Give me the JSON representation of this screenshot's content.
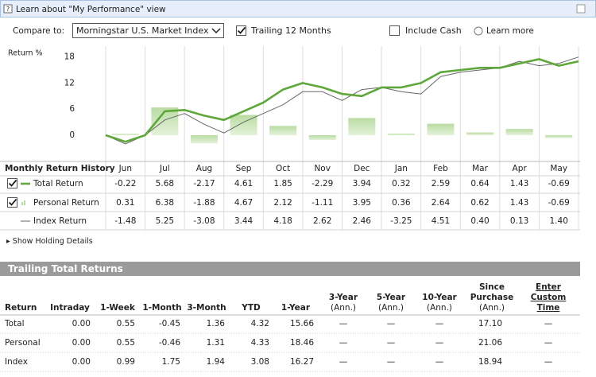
{
  "header": {
    "learn_about": "Learn about \"My Performance\" view"
  },
  "controls": {
    "compare_label": "Compare to:",
    "compare_value": "Morningstar U.S. Market Index",
    "trailing": "Trailing 12 Months",
    "trailing_checked": true,
    "include_cash": "Include Cash",
    "include_cash_checked": false,
    "learn_more": "Learn more"
  },
  "chart_data": {
    "type": "line",
    "y_label": "Return %",
    "title": "Monthly Return History",
    "categories": [
      "Jun",
      "Jul",
      "Aug",
      "Sep",
      "Oct",
      "Nov",
      "Dec",
      "Jan",
      "Feb",
      "Mar",
      "Apr",
      "May"
    ],
    "x": [
      0,
      0.5,
      1,
      1.5,
      2,
      2.5,
      3,
      3.5,
      4,
      4.5,
      5,
      5.5,
      6,
      6.5,
      7,
      7.5,
      8,
      8.5,
      9,
      9.5,
      10,
      10.5,
      11,
      11.5,
      12
    ],
    "xlim": [
      0,
      12
    ],
    "xticks": [
      0,
      1,
      2,
      3,
      4,
      5,
      6,
      7,
      8,
      9,
      10,
      11,
      12
    ],
    "ylim": [
      -5.5,
      20.5
    ],
    "yticks": [
      0,
      6,
      12,
      18
    ],
    "series": [
      {
        "name": "Total Return",
        "color": "#5ea83a",
        "values": [
          0,
          -1.5,
          0,
          5.5,
          5.8,
          4.5,
          3.5,
          5.5,
          7.5,
          10.5,
          12,
          11,
          9.5,
          9,
          11,
          11,
          12,
          14.5,
          15,
          15.5,
          15.5,
          16.5,
          17.5,
          16,
          17
        ],
        "monthly": [
          "-0.22",
          "5.68",
          "-2.17",
          "4.61",
          "1.85",
          "-2.29",
          "3.94",
          "0.32",
          "2.59",
          "0.64",
          "1.43",
          "-0.69"
        ]
      },
      {
        "name": "Personal Return",
        "color": "#b9dca2",
        "values": [
          0.31,
          6.38,
          -1.88,
          4.67,
          2.12,
          -1.11,
          3.95,
          0.36,
          2.64,
          0.62,
          1.43,
          -0.69
        ]
      },
      {
        "name": "Index Return",
        "color": "#666666",
        "values": [
          0,
          -2,
          0,
          3.5,
          5,
          2.5,
          0.5,
          3,
          5,
          7,
          10,
          10,
          8,
          10.5,
          11,
          10,
          9.5,
          13.5,
          14.5,
          15,
          15.5,
          17,
          16,
          16.5,
          18
        ],
        "monthly": [
          "-1.48",
          "5.25",
          "-3.08",
          "3.44",
          "4.18",
          "2.62",
          "2.46",
          "-3.25",
          "4.51",
          "0.40",
          "0.13",
          "1.40"
        ]
      }
    ]
  },
  "holding_details": "Show Holding Details",
  "trailing": {
    "title": "Trailing Total Returns",
    "columns": [
      [
        "Return"
      ],
      [
        "Intraday"
      ],
      [
        "1-Week"
      ],
      [
        "1-Month"
      ],
      [
        "3-Month"
      ],
      [
        "YTD"
      ],
      [
        "1-Year"
      ],
      [
        "3-Year",
        "(Ann.)"
      ],
      [
        "5-Year",
        "(Ann.)"
      ],
      [
        "10-Year",
        "(Ann.)"
      ],
      [
        "Since",
        "Purchase",
        "(Ann.)"
      ],
      [
        "Enter",
        "Custom",
        "Time"
      ]
    ],
    "rows": [
      [
        "Total",
        "0.00",
        "0.55",
        "-0.45",
        "1.36",
        "4.32",
        "15.66",
        "—",
        "—",
        "—",
        "17.10",
        "—"
      ],
      [
        "Personal",
        "0.00",
        "0.55",
        "-0.46",
        "1.31",
        "4.33",
        "18.46",
        "—",
        "—",
        "—",
        "21.06",
        "—"
      ],
      [
        "Index",
        "0.00",
        "0.99",
        "1.75",
        "1.94",
        "3.08",
        "16.27",
        "—",
        "—",
        "—",
        "18.94",
        "—"
      ]
    ]
  }
}
